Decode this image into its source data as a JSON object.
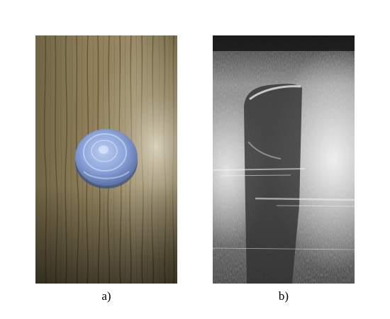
{
  "figure": {
    "panels": [
      {
        "caption": "a)",
        "content": "photograph",
        "colors": {
          "wood_base": "#8a7a55",
          "wood_grain": "#4a3f2a",
          "wood_highlight": "#c9c0a6",
          "sample": "#8fa7dc",
          "sample_shadow": "#4d6393",
          "sample_highlight": "#d6e2f7"
        }
      },
      {
        "caption": "b)",
        "content": "grayscale-scan",
        "colors": {
          "background_dark": "#1c1c1c",
          "background_mid": "#6d6d6d",
          "bright": "#e6e6e6",
          "inclusion": "#2e2e2e"
        }
      }
    ]
  }
}
